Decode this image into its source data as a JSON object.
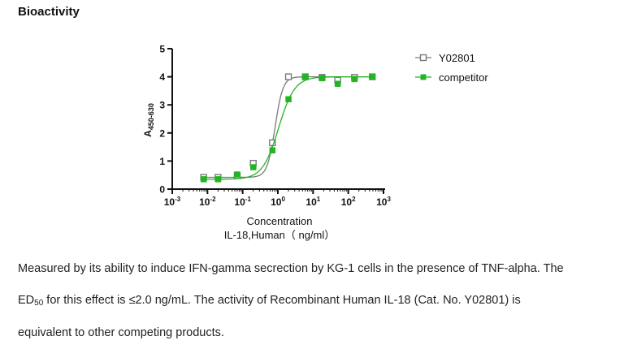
{
  "page": {
    "heading": "Bioactivity",
    "desc_line1": "Measured by its ability to induce IFN-gamma secrection by KG-1 cells in the presence of TNF-alpha. The",
    "desc_line2_a": "ED",
    "desc_line2_sub": "50",
    "desc_line2_b": " for this effect is  ≤2.0 ng/mL. The activity of Recombinant Human IL-18 (Cat. No. Y02801) is",
    "desc_line3": "equivalent to other competing products."
  },
  "colors": {
    "series1": "#7a7a7a",
    "series2": "#22b522",
    "axis": "#111111"
  },
  "chart_data": {
    "type": "scatter",
    "xlabel": "Concentration",
    "xlabel2": "IL-18,Human（ ng/ml）",
    "ylabel_main": "A",
    "ylabel_sub": "450-630",
    "xscale": "log",
    "xlim": [
      0.001,
      1000
    ],
    "ylim": [
      0,
      5
    ],
    "x_tick_values": [
      0.001,
      0.01,
      0.1,
      1,
      10,
      100,
      1000
    ],
    "x_tick_exponents": [
      "-3",
      "-2",
      "-1",
      "0",
      "1",
      "2",
      "3"
    ],
    "y_ticks": [
      0,
      1,
      2,
      3,
      4,
      5
    ],
    "legend_position": "top-right",
    "grid": false,
    "series": [
      {
        "name": "Y02801",
        "marker": "open-square",
        "x": [
          0.0078,
          0.02,
          0.07,
          0.2,
          0.7,
          2,
          6,
          18,
          50,
          150,
          480
        ],
        "y": [
          0.42,
          0.42,
          0.48,
          0.92,
          1.65,
          4.0,
          4.0,
          3.98,
          3.88,
          3.98,
          4.0
        ]
      },
      {
        "name": "competitor",
        "marker": "filled-square",
        "x": [
          0.0078,
          0.02,
          0.07,
          0.2,
          0.7,
          2,
          6,
          18,
          50,
          150,
          480
        ],
        "y": [
          0.35,
          0.35,
          0.52,
          0.78,
          1.38,
          3.2,
          4.0,
          3.95,
          3.75,
          3.92,
          4.0
        ]
      }
    ]
  }
}
